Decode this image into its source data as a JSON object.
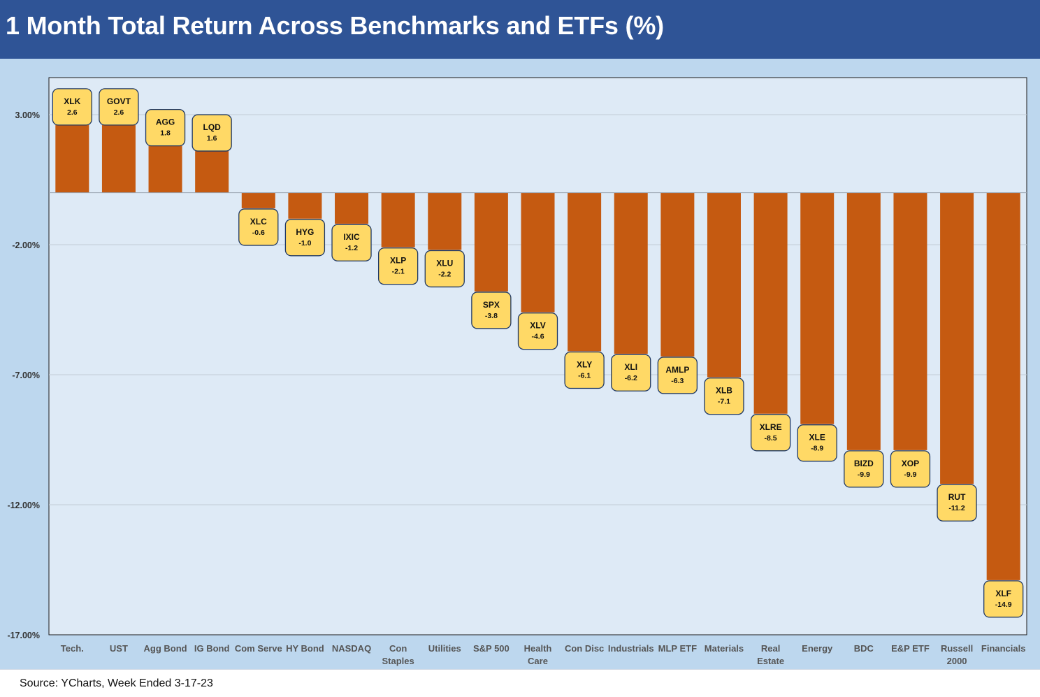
{
  "header": {
    "title": "1 Month Total Return Across Benchmarks and ETFs (%)"
  },
  "footer": {
    "source": "Source: YCharts, Week Ended 3-17-23"
  },
  "colors": {
    "bar": "#c55a11",
    "label_fill": "#ffd966",
    "label_border": "#1f3864",
    "plot_bg": "#deeaf6",
    "outer_bg": "#bdd7ee",
    "header_bg": "#2f5496"
  },
  "chart_data": {
    "type": "bar",
    "categories": [
      [
        "Tech."
      ],
      [
        "UST"
      ],
      [
        "Agg Bond"
      ],
      [
        "IG Bond"
      ],
      [
        "Com Serve"
      ],
      [
        "HY Bond"
      ],
      [
        "NASDAQ"
      ],
      [
        "Con",
        "Staples"
      ],
      [
        "Utilities"
      ],
      [
        "S&P 500"
      ],
      [
        "Health",
        "Care"
      ],
      [
        "Con Disc"
      ],
      [
        "Industrials"
      ],
      [
        "MLP ETF"
      ],
      [
        "Materials"
      ],
      [
        "Real",
        "Estate"
      ],
      [
        "Energy"
      ],
      [
        "BDC"
      ],
      [
        "E&P ETF"
      ],
      [
        "Russell",
        "2000"
      ],
      [
        "Financials"
      ]
    ],
    "tickers": [
      "XLK",
      "GOVT",
      "AGG",
      "LQD",
      "XLC",
      "HYG",
      "IXIC",
      "XLP",
      "XLU",
      "SPX",
      "XLV",
      "XLY",
      "XLI",
      "AMLP",
      "XLB",
      "XLRE",
      "XLE",
      "BIZD",
      "XOP",
      "RUT",
      "XLF"
    ],
    "values": [
      2.6,
      2.6,
      1.8,
      1.6,
      -0.6,
      -1.0,
      -1.2,
      -2.1,
      -2.2,
      -3.8,
      -4.6,
      -6.1,
      -6.2,
      -6.3,
      -7.1,
      -8.5,
      -8.9,
      -9.9,
      -9.9,
      -11.2,
      -14.9
    ],
    "value_labels": [
      "2.6",
      "2.6",
      "1.8",
      "1.6",
      "-0.6",
      "-1.0",
      "-1.2",
      "-2.1",
      "-2.2",
      "-3.8",
      "-4.6",
      "-6.1",
      "-6.2",
      "-6.3",
      "-7.1",
      "-8.5",
      "-8.9",
      "-9.9",
      "-9.9",
      "-11.2",
      "-14.9"
    ],
    "yticks": [
      3,
      -2,
      -7,
      -12,
      -17
    ],
    "ytick_labels": [
      "3.00%",
      "-2.00%",
      "-7.00%",
      "-12.00%",
      "-17.00%"
    ],
    "ylim": [
      -17,
      4.5
    ],
    "grid": true,
    "legend": "none"
  }
}
